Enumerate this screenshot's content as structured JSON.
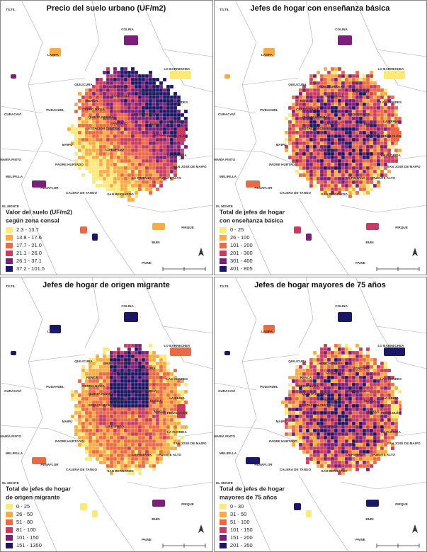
{
  "communes": [
    "TILTIL",
    "COLINA",
    "LO BARNECHEA",
    "LAMPA",
    "QUILICURA",
    "HUECHURABA",
    "VITACURA",
    "RENCA",
    "CONCHALÍ",
    "PUDAHUEL",
    "CERRO NAVIA",
    "PROVIDENCIA",
    "LAS CONDES",
    "CURACAVÍ",
    "QUINTA NORMAL",
    "SANTIAGO",
    "ÑUÑOA",
    "LA REINA",
    "ESTACIÓN CENTRAL",
    "MACUL",
    "PEÑALOLÉN",
    "MAIPÚ",
    "LO ESPEJO",
    "LA FLORIDA",
    "MARÍA PINTO",
    "PADRE HURTADO",
    "SAN JOSÉ DE MAIPO",
    "MELIPILLA",
    "LA PINTANA",
    "PUENTE ALTO",
    "PEÑAFLOR",
    "CALERA DE TANGO",
    "SAN BERNARDO",
    "EL MONTE",
    "PIRQUE",
    "BUIN",
    "PAINE"
  ],
  "panels": [
    {
      "title": "Precio del suelo urbano (UF/m2)",
      "legend": {
        "title": "Valor del suelo (UF/m2)",
        "subtitle": "según zona censal",
        "items": [
          "2.3 - 13.7",
          "13.8 - 17.6",
          "17.7 - 21.0",
          "21.1 - 26.0",
          "26.1 - 37.1",
          "37.2 - 101.5"
        ],
        "colors": [
          "#fbe97a",
          "#f8ab45",
          "#ea6a45",
          "#c83b63",
          "#7c1f78",
          "#1c1667"
        ]
      }
    },
    {
      "title": "Jefes de hogar con enseñanza básica",
      "legend": {
        "title": "Total de jefes de hogar",
        "subtitle": "con enseñanza básica",
        "items": [
          "0 - 25",
          "26 - 100",
          "101 - 200",
          "201 - 300",
          "301 - 400",
          "401 - 805"
        ],
        "colors": [
          "#fbe97a",
          "#f8ab45",
          "#ea6a45",
          "#c83b63",
          "#7c1f78",
          "#1c1667"
        ]
      }
    },
    {
      "title": "Jefes de hogar de origen migrante",
      "legend": {
        "title": "Total de jefes de hogar",
        "subtitle": "de origen migrante",
        "items": [
          "0 - 25",
          "26 - 50",
          "51 - 80",
          "81 - 100",
          "101 - 150",
          "151 - 1350"
        ],
        "colors": [
          "#fbe97a",
          "#f8ab45",
          "#ea6a45",
          "#c83b63",
          "#7c1f78",
          "#1c1667"
        ]
      }
    },
    {
      "title": "Jefes de hogar mayores de 75 años",
      "legend": {
        "title": "Total de jefes de hogar",
        "subtitle": "mayores de 75 años",
        "items": [
          "0 - 30",
          "31 - 50",
          "51 - 100",
          "101 - 150",
          "151 - 200",
          "201 - 350"
        ],
        "colors": [
          "#fbe97a",
          "#f8ab45",
          "#ea6a45",
          "#c83b63",
          "#7c1f78",
          "#1c1667"
        ]
      }
    }
  ]
}
